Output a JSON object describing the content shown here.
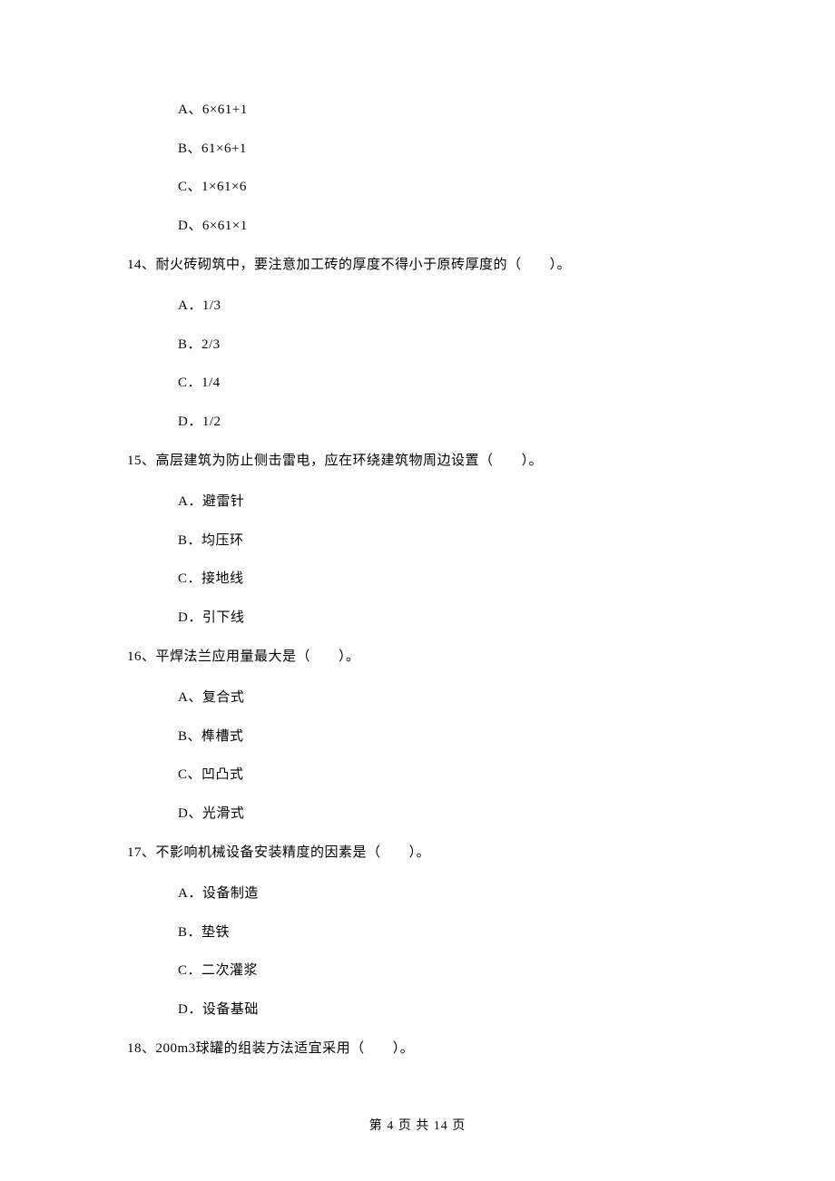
{
  "prelude_options": [
    "A、6×61+1",
    "B、61×6+1",
    "C、1×61×6",
    "D、6×61×1"
  ],
  "questions": [
    {
      "number": "14、",
      "stem": "耐火砖砌筑中，要注意加工砖的厚度不得小于原砖厚度的（　　）。",
      "options": [
        "A．1/3",
        "B．2/3",
        "C．1/4",
        "D．1/2"
      ]
    },
    {
      "number": "15、",
      "stem": "高层建筑为防止侧击雷电，应在环绕建筑物周边设置（　　）。",
      "options": [
        "A．避雷针",
        "B．均压环",
        "C．接地线",
        "D．引下线"
      ]
    },
    {
      "number": "16、",
      "stem": "平焊法兰应用量最大是（　　）。",
      "options": [
        "A、复合式",
        "B、榫槽式",
        "C、凹凸式",
        "D、光滑式"
      ]
    },
    {
      "number": "17、",
      "stem": "不影响机械设备安装精度的因素是（　　）。",
      "options": [
        "A．设备制造",
        "B．垫铁",
        "C．二次灌浆",
        "D．设备基础"
      ]
    },
    {
      "number": "18、",
      "stem": "200m3球罐的组装方法适宜采用（　　）。",
      "options": []
    }
  ],
  "footer": "第 4 页 共 14 页"
}
